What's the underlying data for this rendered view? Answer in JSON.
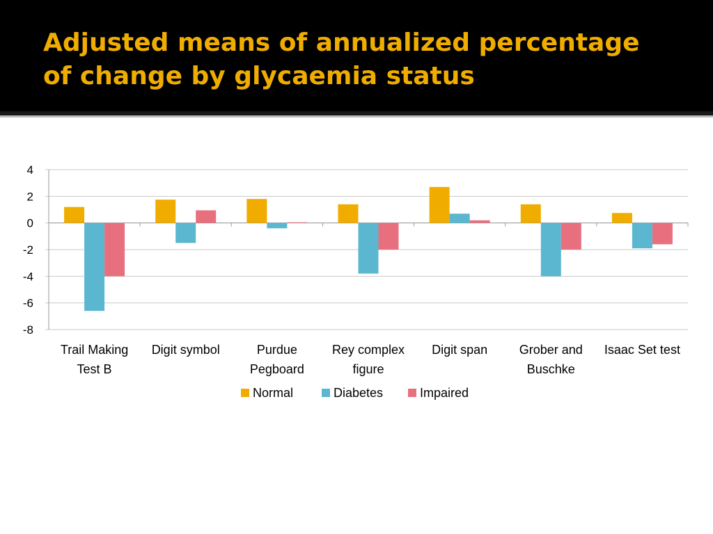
{
  "slide": {
    "title_line1": "Adjusted means of annualized percentage",
    "title_line2": "of change by glycaemia status",
    "title_color": "#f0ad00",
    "band_color": "#000000"
  },
  "chart_data": {
    "type": "bar",
    "categories": [
      [
        "Trail Making",
        "Test B"
      ],
      [
        "Digit symbol"
      ],
      [
        "Purdue",
        "Pegboard"
      ],
      [
        "Rey complex",
        "figure"
      ],
      [
        "Digit span"
      ],
      [
        "Grober and",
        "Buschke"
      ],
      [
        "Isaac Set test"
      ]
    ],
    "series": [
      {
        "name": "Normal",
        "color": "#f0ad00",
        "values": [
          1.2,
          1.75,
          1.8,
          1.4,
          2.7,
          1.4,
          0.75
        ]
      },
      {
        "name": "Diabetes",
        "color": "#5bb7cf",
        "values": [
          -6.6,
          -1.5,
          -0.4,
          -3.8,
          0.7,
          -4.0,
          -1.9
        ]
      },
      {
        "name": "Impaired",
        "color": "#e8707e",
        "values": [
          -4.0,
          0.95,
          0.05,
          -2.0,
          0.2,
          -2.0,
          -1.6
        ]
      }
    ],
    "ylim": [
      -8,
      4
    ],
    "yticks": [
      "4",
      "2",
      "0",
      "-2",
      "-4",
      "-6",
      "-8"
    ],
    "ytick_values": [
      4,
      2,
      0,
      -2,
      -4,
      -6,
      -8
    ],
    "grid": true,
    "legend": "bottom",
    "title": "",
    "xlabel": "",
    "ylabel": ""
  }
}
